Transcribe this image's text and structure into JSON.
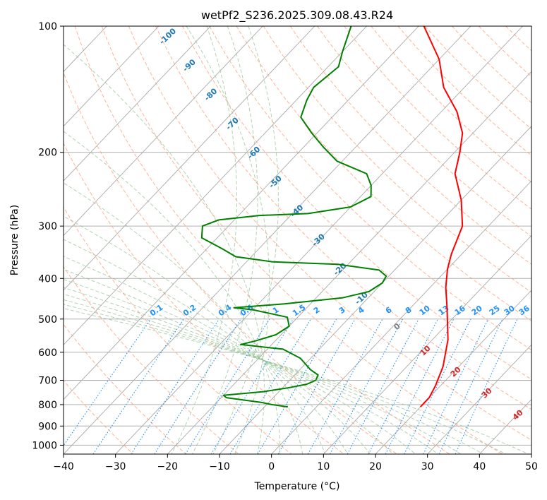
{
  "chart_data": {
    "type": "line",
    "subtype": "skew-t log-p",
    "title": "wetPf2_S236.2025.309.08.43.R24",
    "xlabel": "Temperature (°C)",
    "ylabel": "Pressure (hPa)",
    "xlim": [
      -40,
      50
    ],
    "ylim": [
      1050,
      100
    ],
    "x_ticks": [
      -40,
      -30,
      -20,
      -10,
      0,
      10,
      20,
      30,
      40,
      50
    ],
    "x_tick_labels": [
      "−40",
      "−30",
      "−20",
      "−10",
      "0",
      "10",
      "20",
      "30",
      "40",
      "50"
    ],
    "y_ticks": [
      100,
      200,
      300,
      400,
      500,
      600,
      700,
      800,
      900,
      1000
    ],
    "y_tick_labels": [
      "100",
      "200",
      "300",
      "400",
      "500",
      "600",
      "700",
      "800",
      "900",
      "1000"
    ],
    "grid": true,
    "series": [
      {
        "name": "Temperature",
        "color": "#ff0000",
        "points": [
          {
            "p": 810,
            "t": 20.0
          },
          {
            "p": 770,
            "t": 20.0
          },
          {
            "p": 720,
            "t": 19.0
          },
          {
            "p": 650,
            "t": 17.0
          },
          {
            "p": 560,
            "t": 13.0
          },
          {
            "p": 470,
            "t": 7.0
          },
          {
            "p": 420,
            "t": 3.0
          },
          {
            "p": 380,
            "t": 0.0
          },
          {
            "p": 350,
            "t": -2.0
          },
          {
            "p": 300,
            "t": -5.0
          },
          {
            "p": 260,
            "t": -10.0
          },
          {
            "p": 225,
            "t": -16.0
          },
          {
            "p": 200,
            "t": -19.0
          },
          {
            "p": 180,
            "t": -22.0
          },
          {
            "p": 160,
            "t": -27.0
          },
          {
            "p": 140,
            "t": -34.0
          },
          {
            "p": 120,
            "t": -40.0
          },
          {
            "p": 100,
            "t": -49.0
          }
        ]
      },
      {
        "name": "Dewpoint",
        "color": "#008000",
        "points": [
          {
            "p": 810,
            "t": -5.5
          },
          {
            "p": 800,
            "t": -9.0
          },
          {
            "p": 790,
            "t": -11.5
          },
          {
            "p": 770,
            "t": -19.0
          },
          {
            "p": 760,
            "t": -20.0
          },
          {
            "p": 745,
            "t": -13.0
          },
          {
            "p": 730,
            "t": -9.0
          },
          {
            "p": 715,
            "t": -6.0
          },
          {
            "p": 700,
            "t": -5.0
          },
          {
            "p": 680,
            "t": -5.5
          },
          {
            "p": 660,
            "t": -8.0
          },
          {
            "p": 620,
            "t": -12.0
          },
          {
            "p": 590,
            "t": -17.0
          },
          {
            "p": 575,
            "t": -26.0
          },
          {
            "p": 565,
            "t": -24.0
          },
          {
            "p": 545,
            "t": -21.0
          },
          {
            "p": 520,
            "t": -20.0
          },
          {
            "p": 495,
            "t": -22.0
          },
          {
            "p": 475,
            "t": -30.0
          },
          {
            "p": 470,
            "t": -34.0
          },
          {
            "p": 460,
            "t": -25.0
          },
          {
            "p": 445,
            "t": -15.0
          },
          {
            "p": 430,
            "t": -11.0
          },
          {
            "p": 410,
            "t": -10.0
          },
          {
            "p": 395,
            "t": -10.5
          },
          {
            "p": 382,
            "t": -13.0
          },
          {
            "p": 370,
            "t": -22.0
          },
          {
            "p": 365,
            "t": -35.0
          },
          {
            "p": 355,
            "t": -43.0
          },
          {
            "p": 340,
            "t": -47.0
          },
          {
            "p": 320,
            "t": -53.0
          },
          {
            "p": 300,
            "t": -55.0
          },
          {
            "p": 290,
            "t": -53.0
          },
          {
            "p": 283,
            "t": -46.0
          },
          {
            "p": 280,
            "t": -37.0
          },
          {
            "p": 270,
            "t": -30.0
          },
          {
            "p": 255,
            "t": -28.0
          },
          {
            "p": 240,
            "t": -30.0
          },
          {
            "p": 225,
            "t": -33.0
          },
          {
            "p": 210,
            "t": -41.0
          },
          {
            "p": 195,
            "t": -46.0
          },
          {
            "p": 180,
            "t": -51.0
          },
          {
            "p": 165,
            "t": -56.0
          },
          {
            "p": 150,
            "t": -58.0
          },
          {
            "p": 140,
            "t": -59.0
          },
          {
            "p": 125,
            "t": -58.0
          },
          {
            "p": 115,
            "t": -60.0
          },
          {
            "p": 100,
            "t": -63.0
          }
        ]
      }
    ],
    "dry_adiabat_labels": [
      "-100",
      "-90",
      "-80",
      "-70",
      "-60",
      "-50",
      "-40",
      "-30",
      "-20",
      "-10"
    ],
    "dry_adiabat_label_color": "#1f77b4",
    "mixing_ratio_labels": [
      "0.1",
      "0.2",
      "0.4",
      "0.6",
      "1",
      "1.5",
      "2",
      "3",
      "4",
      "6",
      "8",
      "10",
      "13",
      "16",
      "20",
      "25",
      "30",
      "36"
    ],
    "mixing_ratio_label_color": "#1e90ff",
    "isotherm_labels": [
      "0",
      "10",
      "20",
      "30",
      "40"
    ],
    "isotherm_label_colors": [
      "#808080",
      "#d62728",
      "#d62728",
      "#d62728",
      "#d62728"
    ],
    "colors": {
      "isobar_grid": "#b0b0b0",
      "skewed_isotherm": "#a9a9a9",
      "dry_adiabat": "#ffa07a",
      "moist_adiabat": "#90c090",
      "mixing_ratio": "#1e90ff"
    }
  }
}
